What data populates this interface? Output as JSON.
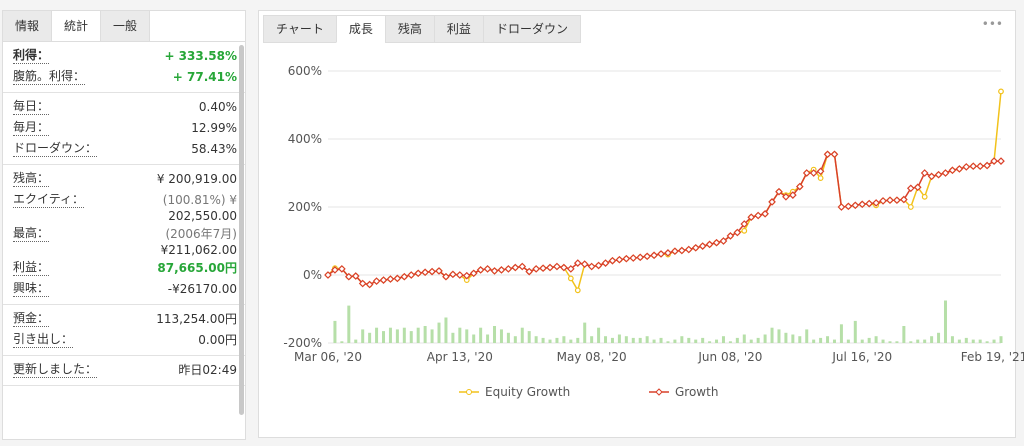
{
  "left_panel": {
    "tabs": [
      "情報",
      "統計",
      "一般"
    ],
    "active_tab": 1,
    "sections": [
      [
        {
          "label": "利得：",
          "value": "+ 333.58%",
          "color": "green",
          "bold": true
        },
        {
          "label": "腹筋。利得：",
          "value": "+ 77.41%",
          "color": "green"
        }
      ],
      [
        {
          "label": "毎日：",
          "value": "0.40%"
        },
        {
          "label": "毎月：",
          "value": "12.99%"
        },
        {
          "label": "ドローダウン：",
          "value": "58.43%"
        }
      ],
      [
        {
          "label": "残高：",
          "value": "¥ 200,919.00"
        },
        {
          "label": "エクイティ：",
          "note": "(100.81%) ¥",
          "value": "202,550.00"
        },
        {
          "label": "最高：",
          "note": "(2006年7月)",
          "value": "¥211,062.00"
        },
        {
          "label": "利益：",
          "value": "87,665.00円",
          "color": "green"
        },
        {
          "label": "興味：",
          "value": "-¥26170.00"
        }
      ],
      [
        {
          "label": "預金：",
          "value": "113,254.00円"
        },
        {
          "label": "引き出し：",
          "value": "0.00円"
        }
      ],
      [
        {
          "label": "更新しました：",
          "value": "昨日02:49"
        }
      ]
    ]
  },
  "chart_tabs": {
    "tabs": [
      "チャート",
      "成長",
      "残高",
      "利益",
      "ドローダウン"
    ],
    "active_tab": 1,
    "menu": "•••"
  },
  "chart_data": {
    "type": "line",
    "categories": [
      "Mar 06, '20",
      null,
      null,
      null,
      null,
      null,
      null,
      null,
      null,
      null,
      null,
      null,
      null,
      null,
      null,
      null,
      null,
      null,
      null,
      "Apr 13, '20",
      null,
      null,
      null,
      null,
      null,
      null,
      null,
      null,
      null,
      null,
      null,
      null,
      null,
      null,
      null,
      null,
      null,
      null,
      "May 08, '20",
      null,
      null,
      null,
      null,
      null,
      null,
      null,
      null,
      null,
      null,
      null,
      null,
      null,
      null,
      null,
      null,
      null,
      null,
      null,
      "Jun 08, '20",
      null,
      null,
      null,
      null,
      null,
      null,
      null,
      null,
      null,
      null,
      null,
      null,
      null,
      null,
      null,
      null,
      null,
      null,
      "Jul 16, '20",
      null,
      null,
      null,
      null,
      null,
      null,
      null,
      null,
      null,
      null,
      null,
      null,
      null,
      null,
      null,
      null,
      null,
      null,
      "Feb 19, '21",
      null
    ],
    "series": [
      {
        "name": "Equity Growth",
        "color": "#f2c21b",
        "marker": "circle",
        "values": [
          0,
          20,
          18,
          -5,
          -3,
          -25,
          -28,
          -18,
          -15,
          -12,
          -10,
          -5,
          0,
          5,
          8,
          10,
          12,
          -5,
          2,
          0,
          -15,
          5,
          15,
          18,
          12,
          15,
          18,
          22,
          25,
          10,
          18,
          20,
          22,
          25,
          22,
          -10,
          -45,
          32,
          25,
          28,
          35,
          42,
          45,
          48,
          50,
          52,
          55,
          58,
          62,
          60,
          70,
          72,
          75,
          80,
          85,
          90,
          95,
          100,
          115,
          125,
          130,
          170,
          175,
          180,
          215,
          245,
          235,
          245,
          260,
          300,
          310,
          285,
          355,
          355,
          200,
          202,
          205,
          208,
          210,
          205,
          218,
          220,
          220,
          222,
          200,
          258,
          230,
          290,
          295,
          300,
          308,
          312,
          318,
          320,
          320,
          322,
          335,
          540
        ]
      },
      {
        "name": "Growth",
        "color": "#d9402a",
        "marker": "diamond",
        "values": [
          0,
          15,
          18,
          -5,
          -3,
          -25,
          -28,
          -18,
          -15,
          -12,
          -10,
          -5,
          0,
          5,
          8,
          10,
          12,
          -5,
          2,
          0,
          -2,
          5,
          15,
          18,
          12,
          15,
          18,
          22,
          25,
          10,
          18,
          20,
          22,
          25,
          22,
          18,
          35,
          32,
          25,
          28,
          35,
          42,
          45,
          48,
          50,
          52,
          55,
          58,
          62,
          65,
          70,
          72,
          75,
          80,
          85,
          90,
          95,
          100,
          115,
          125,
          150,
          170,
          175,
          180,
          215,
          245,
          230,
          235,
          260,
          300,
          300,
          305,
          355,
          355,
          200,
          202,
          205,
          208,
          210,
          212,
          218,
          220,
          220,
          222,
          255,
          258,
          300,
          290,
          295,
          300,
          308,
          312,
          318,
          320,
          320,
          322,
          335,
          335
        ]
      }
    ],
    "bars": {
      "color": "#b6dfa8",
      "values": [
        0,
        65,
        5,
        110,
        10,
        40,
        30,
        45,
        35,
        45,
        40,
        45,
        35,
        45,
        50,
        40,
        60,
        75,
        30,
        45,
        40,
        25,
        45,
        25,
        50,
        40,
        30,
        20,
        45,
        35,
        20,
        15,
        10,
        15,
        20,
        10,
        15,
        60,
        20,
        45,
        20,
        15,
        25,
        20,
        15,
        15,
        20,
        10,
        15,
        5,
        10,
        20,
        15,
        10,
        15,
        5,
        10,
        20,
        5,
        15,
        25,
        10,
        15,
        25,
        45,
        40,
        30,
        25,
        20,
        40,
        10,
        15,
        20,
        10,
        55,
        10,
        65,
        10,
        15,
        20,
        10,
        5,
        5,
        50,
        5,
        10,
        10,
        20,
        30,
        125,
        20,
        10,
        15,
        10,
        10,
        5,
        10,
        20
      ]
    },
    "ylim": [
      -200,
      600
    ],
    "yticks": [
      {
        "value": -200,
        "label": "-200%"
      },
      {
        "value": 0,
        "label": "0%"
      },
      {
        "value": 200,
        "label": "200%"
      },
      {
        "value": 400,
        "label": "400%"
      },
      {
        "value": 600,
        "label": "600%"
      }
    ],
    "grid": true,
    "legend": "bottom"
  }
}
